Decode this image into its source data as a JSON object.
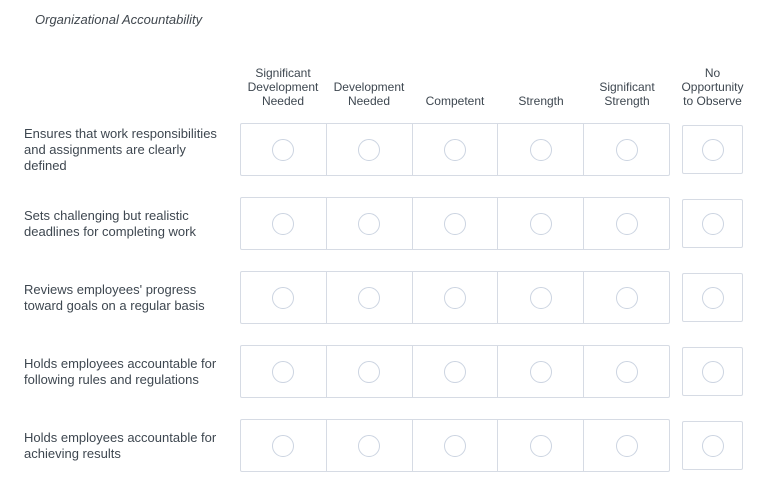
{
  "title": "Organizational Accountability",
  "matrix": {
    "columns": [
      "Significant Development Needed",
      "Development Needed",
      "Competent",
      "Strength",
      "Significant Strength",
      "No Opportunity to Observe"
    ],
    "rows": [
      "Ensures that work responsibilities and assignments are clearly defined",
      "Sets challenging but realistic deadlines for completing work",
      "Reviews employees' progress toward goals on a regular basis",
      "Holds employees accountable for following rules and regulations",
      "Holds employees accountable for achieving results"
    ],
    "radio_state": "unselected",
    "options_per_row": 6
  },
  "colors": {
    "text": "#3e4750",
    "box_border": "#d6dbe4",
    "radio_border": "#ccd4e1",
    "background": "#ffffff"
  },
  "icons": {
    "radio": "radio-unselected-circle"
  }
}
